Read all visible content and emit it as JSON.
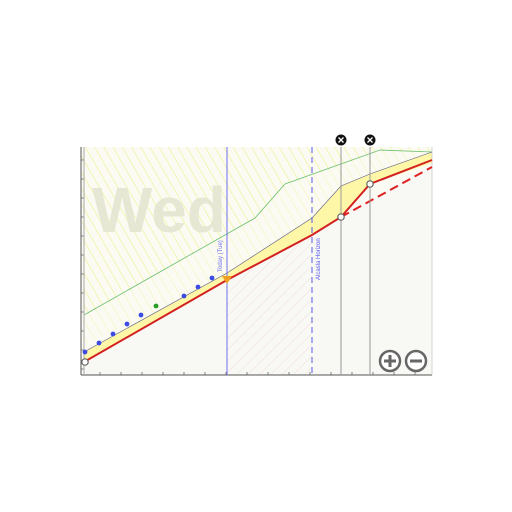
{
  "watermark": {
    "day_text": "Wed"
  },
  "markers": {
    "today_label": "Today (Tue)",
    "horizon_label": "Alcasla Horizon"
  },
  "controls": {
    "zoom_in_icon": "plus-circle-icon",
    "zoom_out_icon": "minus-circle-icon",
    "close_icon": "close-x-icon",
    "close_marker_count": 2
  },
  "colors": {
    "band_fill": "#fff7a8",
    "hatch": "#eef08a",
    "main_line": "#d32020",
    "projection_line": "#e02020",
    "green_line": "#6cbf6c",
    "today_line": "#6f6fef",
    "horizon_line": "#5a5aee",
    "dots": "#3d4ce0",
    "dot_highlight": "#2aa02a",
    "today_marker": "#f0a020",
    "pink_hatch": "#f4c9c9"
  },
  "chart_data": {
    "type": "line",
    "title": "",
    "xlabel": "",
    "ylabel": "",
    "series": [
      {
        "values": [
          0.0,
          0.31,
          0.44,
          0.62,
          0.74,
          0.82
        ]
      },
      {
        "values": [
          0.05,
          0.36,
          0.49,
          0.67,
          0.84,
          0.95
        ]
      },
      {
        "values": [
          0.24,
          0.5,
          0.58,
          0.72,
          0.82,
          0.93
        ]
      },
      {
        "values": [
          0.08,
          0.13,
          0.19,
          0.26,
          0.3,
          0.36,
          0.4,
          0.43
        ]
      }
    ]
  }
}
